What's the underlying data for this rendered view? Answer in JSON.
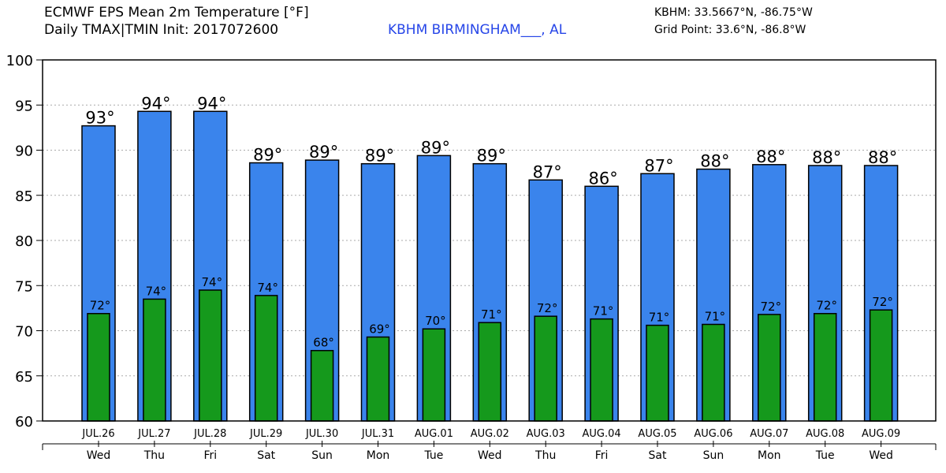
{
  "header": {
    "title": "ECMWF EPS Mean 2m Temperature [°F]",
    "subtitle": "Daily TMAX|TMIN Init: 2017072600",
    "station": "KBHM BIRMINGHAM___, AL",
    "coords": "KBHM: 33.5667°N, -86.75°W",
    "grid_point": "Grid Point: 33.6°N, -86.8°W"
  },
  "colors": {
    "tmax_bar": "#3a84ec",
    "tmin_bar": "#15991c",
    "grid": "#aaaaaa",
    "station_text": "#2746e8"
  },
  "chart_data": {
    "type": "bar",
    "title": "ECMWF EPS Mean 2m Temperature [°F]",
    "ylabel": "°F",
    "xlabel": "",
    "ylim": [
      60,
      100
    ],
    "yticks": [
      60,
      65,
      70,
      75,
      80,
      85,
      90,
      95,
      100
    ],
    "grid": true,
    "categories": [
      "JUL.26",
      "JUL.27",
      "JUL.28",
      "JUL.29",
      "JUL.30",
      "JUL.31",
      "AUG.01",
      "AUG.02",
      "AUG.03",
      "AUG.04",
      "AUG.05",
      "AUG.06",
      "AUG.07",
      "AUG.08",
      "AUG.09"
    ],
    "days": [
      "Wed",
      "Thu",
      "Fri",
      "Sat",
      "Sun",
      "Mon",
      "Tue",
      "Wed",
      "Thu",
      "Fri",
      "Sat",
      "Sun",
      "Mon",
      "Tue",
      "Wed"
    ],
    "series": [
      {
        "name": "TMAX",
        "values": [
          92.7,
          94.3,
          94.3,
          88.6,
          88.9,
          88.5,
          89.4,
          88.5,
          86.7,
          86.0,
          87.4,
          87.9,
          88.4,
          88.3,
          88.3
        ],
        "labels": [
          "93°",
          "94°",
          "94°",
          "89°",
          "89°",
          "89°",
          "89°",
          "89°",
          "87°",
          "86°",
          "87°",
          "88°",
          "88°",
          "88°",
          "88°"
        ]
      },
      {
        "name": "TMIN",
        "values": [
          71.9,
          73.5,
          74.5,
          73.9,
          67.8,
          69.3,
          70.2,
          70.9,
          71.6,
          71.3,
          70.6,
          70.7,
          71.8,
          71.9,
          72.3
        ],
        "labels": [
          "72°",
          "74°",
          "74°",
          "74°",
          "68°",
          "69°",
          "70°",
          "71°",
          "72°",
          "71°",
          "71°",
          "71°",
          "72°",
          "72°",
          "72°"
        ]
      }
    ]
  }
}
